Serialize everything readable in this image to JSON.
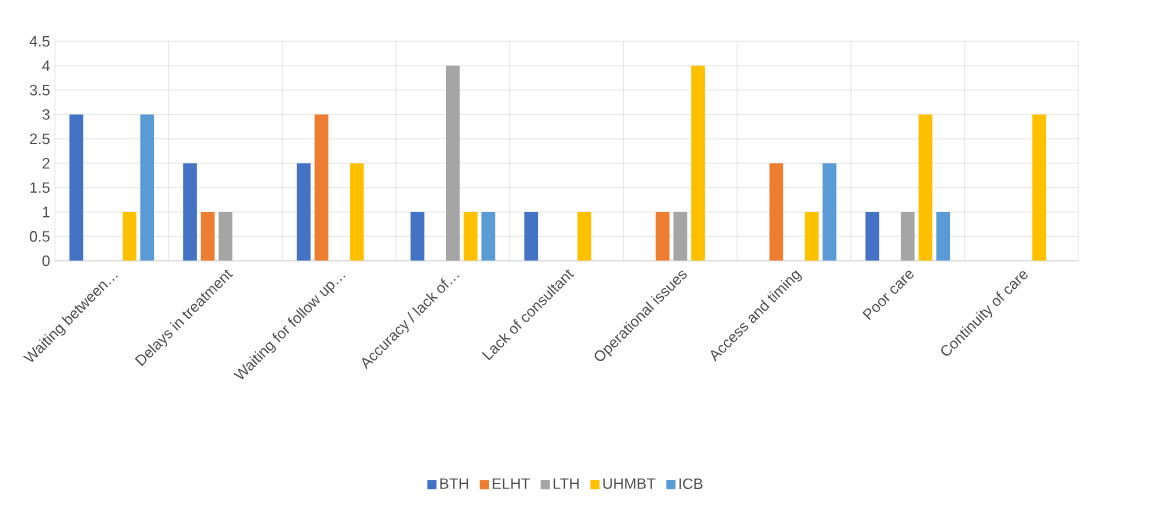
{
  "chart_data": {
    "type": "bar",
    "categories": [
      "Waiting between…",
      "Delays in treatment",
      "Waiting for follow up…",
      "Accuracy / lack of…",
      "Lack of consultant",
      "Operational issues",
      "Access and timing",
      "Poor care",
      "Continuity of care"
    ],
    "series": [
      {
        "name": "BTH",
        "color": "#4472c4",
        "values": [
          3,
          2,
          2,
          1,
          1,
          null,
          null,
          1,
          null
        ]
      },
      {
        "name": "ELHT",
        "color": "#ed7d31",
        "values": [
          null,
          1,
          3,
          null,
          null,
          1,
          2,
          null,
          null
        ]
      },
      {
        "name": "LTH",
        "color": "#a5a5a5",
        "values": [
          null,
          1,
          null,
          4,
          null,
          1,
          null,
          1,
          null
        ]
      },
      {
        "name": "UHMBT",
        "color": "#ffc000",
        "values": [
          1,
          null,
          2,
          1,
          1,
          4,
          1,
          3,
          3
        ]
      },
      {
        "name": "ICB",
        "color": "#5b9bd5",
        "values": [
          3,
          null,
          null,
          1,
          null,
          null,
          2,
          1,
          null
        ]
      }
    ],
    "ylim": [
      0,
      4.5
    ],
    "yticks": [
      0,
      0.5,
      1,
      1.5,
      2,
      2.5,
      3,
      3.5,
      4,
      4.5
    ],
    "grid": true,
    "legend": "bottom"
  }
}
